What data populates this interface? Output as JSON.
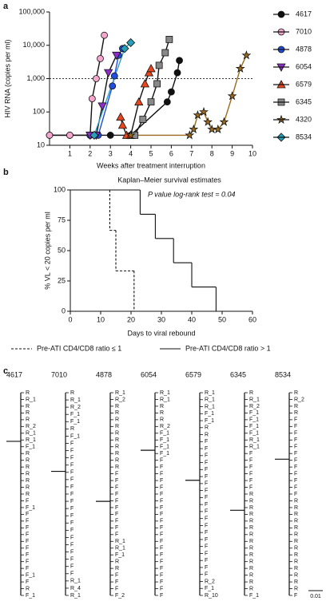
{
  "chart_data": [
    {
      "type": "line",
      "panel_label": "a",
      "y_label": "HIV RNA (copies per ml)",
      "x_label": "Weeks after treatment interruption",
      "log_y": true,
      "xlim": [
        0,
        10
      ],
      "xticks": [
        1,
        2,
        3,
        4,
        5,
        6,
        7,
        8,
        9,
        10
      ],
      "ylim": [
        10,
        100000
      ],
      "yticks": [
        10,
        100,
        {
          "value": 1000,
          "label": "1,000"
        },
        {
          "value": 10000,
          "label": "10,000"
        },
        {
          "value": 100000,
          "label": "100,000"
        }
      ],
      "ref_line": 1000,
      "series": [
        {
          "name": "4617",
          "color": "#111111",
          "line_color": "#111111",
          "marker": "circle",
          "x": [
            0,
            1,
            2,
            3,
            4,
            5.8,
            6,
            6.3,
            6.4
          ],
          "values": [
            20,
            20,
            20,
            20,
            20,
            200,
            400,
            1500,
            3500
          ]
        },
        {
          "name": "7010",
          "color": "#f4a6cc",
          "line_color": "#111111",
          "marker": "circle",
          "x": [
            0,
            1,
            2,
            2.1,
            2.3,
            2.5,
            2.7
          ],
          "values": [
            20,
            20,
            20,
            250,
            1000,
            4000,
            20000
          ]
        },
        {
          "name": "4878",
          "color": "#1f4fe0",
          "line_color": "#1f4fe0",
          "marker": "circle",
          "x": [
            2,
            2.4,
            3.1,
            3.2,
            3.4,
            3.6
          ],
          "values": [
            20,
            20,
            600,
            1200,
            5000,
            8000
          ]
        },
        {
          "name": "6054",
          "color": "#8b2ec4",
          "line_color": "#111111",
          "marker": "tri-down",
          "x": [
            2,
            2.3,
            2.6,
            2.9,
            3.3
          ],
          "values": [
            20,
            20,
            150,
            1500,
            5000
          ]
        },
        {
          "name": "6579",
          "color": "#e8461e",
          "line_color": "#111111",
          "marker": "tri-up",
          "x": [
            3.5,
            3.6,
            3.8,
            4,
            4.4,
            4.7,
            4.9,
            5
          ],
          "values": [
            70,
            40,
            20,
            20,
            200,
            700,
            1500,
            2000
          ]
        },
        {
          "name": "6345",
          "color": "#888888",
          "line_color": "#111111",
          "marker": "square",
          "x": [
            4.2,
            4.6,
            5,
            5.3,
            5.4,
            5.7,
            5.9
          ],
          "values": [
            20,
            60,
            200,
            700,
            2500,
            6000,
            15000
          ]
        },
        {
          "name": "4320",
          "color": "#9c6a1e",
          "line_color": "#9c6a1e",
          "marker": "star",
          "x": [
            4,
            6.9,
            7.1,
            7.3,
            7.6,
            7.8,
            8,
            8.3,
            8.6,
            9,
            9.4,
            9.7
          ],
          "values": [
            20,
            20,
            30,
            80,
            100,
            50,
            30,
            30,
            50,
            300,
            2000,
            5000
          ]
        },
        {
          "name": "8534",
          "color": "#2aa0b8",
          "line_color": "#2aa0b8",
          "marker": "diamond",
          "x": [
            2.2,
            3.7,
            4
          ],
          "values": [
            20,
            8000,
            12000
          ]
        }
      ]
    },
    {
      "type": "step",
      "panel_label": "b",
      "title": "Kaplan–Meier survival estimates",
      "annotation": "P value log-rank test = 0.04",
      "y_label": "% VL < 20 copies per ml",
      "x_label": "Days to viral rebound",
      "xlim": [
        0,
        60
      ],
      "xticks": [
        0,
        10,
        20,
        30,
        40,
        50,
        60
      ],
      "ylim": [
        0,
        100
      ],
      "yticks": [
        0,
        25,
        50,
        75,
        100
      ],
      "series": [
        {
          "name": "Pre-ATI CD4/CD8 ratio ≤ 1",
          "color": "#111111",
          "dash": true,
          "x": [
            0,
            13,
            15,
            21
          ],
          "values": [
            100,
            66.7,
            33.3,
            0
          ]
        },
        {
          "name": "Pre-ATI CD4/CD8 ratio > 1",
          "color": "#111111",
          "dash": false,
          "x": [
            0,
            23,
            28,
            34,
            40,
            48
          ],
          "values": [
            100,
            80,
            60,
            40,
            20,
            0
          ]
        }
      ]
    }
  ],
  "trees": {
    "panel_label": "c",
    "scale_bar": "0.01",
    "label_colors": {
      "R": "#111111",
      "F": "#3a3ad0"
    },
    "items": [
      {
        "name": "4617",
        "leaves": [
          "R",
          "R_1",
          "R",
          "R",
          "R",
          "R_2",
          "R_1",
          "R_1",
          "F_1",
          "R",
          "R",
          "R",
          "R",
          "R",
          "R",
          "R",
          "F",
          "F_1",
          "F",
          "F",
          "F",
          "F",
          "F",
          "F",
          "F",
          "F",
          "F",
          "F_1",
          "F",
          "R",
          "F_1"
        ]
      },
      {
        "name": "7010",
        "leaves": [
          "R",
          "R_1",
          "R_2",
          "F_1",
          "F_1",
          "R",
          "F_1",
          "F",
          "F",
          "F",
          "F",
          "F",
          "F",
          "F",
          "F",
          "F",
          "F",
          "F",
          "F",
          "F",
          "F",
          "F",
          "F",
          "F",
          "F",
          "F",
          "R_1",
          "R_4",
          "R_1"
        ]
      },
      {
        "name": "4878",
        "leaves": [
          "R_1",
          "R_2",
          "R",
          "R",
          "R",
          "R",
          "R",
          "R",
          "R",
          "R",
          "R",
          "R",
          "F",
          "F",
          "F",
          "F",
          "F",
          "F",
          "F",
          "F",
          "F",
          "F",
          "R_1",
          "R_1",
          "F_1",
          "R",
          "R",
          "F",
          "F",
          "F",
          "F_2"
        ]
      },
      {
        "name": "6054",
        "leaves": [
          "R_1",
          "R_1",
          "R",
          "R",
          "R",
          "R_2",
          "F_1",
          "F_1",
          "F_1",
          "F_1",
          "F",
          "F",
          "F",
          "F",
          "F",
          "F",
          "F",
          "F",
          "F",
          "F",
          "F",
          "F",
          "F",
          "F",
          "F",
          "F",
          "F",
          "F",
          "F",
          "F",
          "F"
        ]
      },
      {
        "name": "6579",
        "leaves": [
          "R_1",
          "R_1",
          "R_1",
          "F_1",
          "F_1",
          "R",
          "R",
          "F",
          "F",
          "F",
          "F",
          "F",
          "F",
          "F",
          "F",
          "F",
          "F",
          "F",
          "F",
          "F",
          "F",
          "F",
          "F",
          "F",
          "F",
          "F",
          "F",
          "R_2",
          "F_1",
          "R_10"
        ]
      },
      {
        "name": "6345",
        "leaves": [
          "R",
          "R_1",
          "R_2",
          "F_1",
          "F_1",
          "F_1",
          "F_1",
          "R_1",
          "R_1",
          "F",
          "F",
          "F",
          "F",
          "F",
          "F",
          "R",
          "R",
          "R",
          "R",
          "R",
          "R",
          "R",
          "R",
          "R",
          "R",
          "R",
          "R",
          "R",
          "R",
          "R",
          "F_1"
        ]
      },
      {
        "name": "8534",
        "leaves": [
          "R",
          "R_2",
          "R",
          "R",
          "F",
          "F",
          "F",
          "F",
          "F",
          "F",
          "F",
          "F",
          "F",
          "F",
          "F",
          "F",
          "R",
          "R",
          "R",
          "R",
          "R",
          "R",
          "R",
          "R",
          "R",
          "R",
          "R",
          "R",
          "R",
          "R",
          "F"
        ]
      }
    ]
  }
}
